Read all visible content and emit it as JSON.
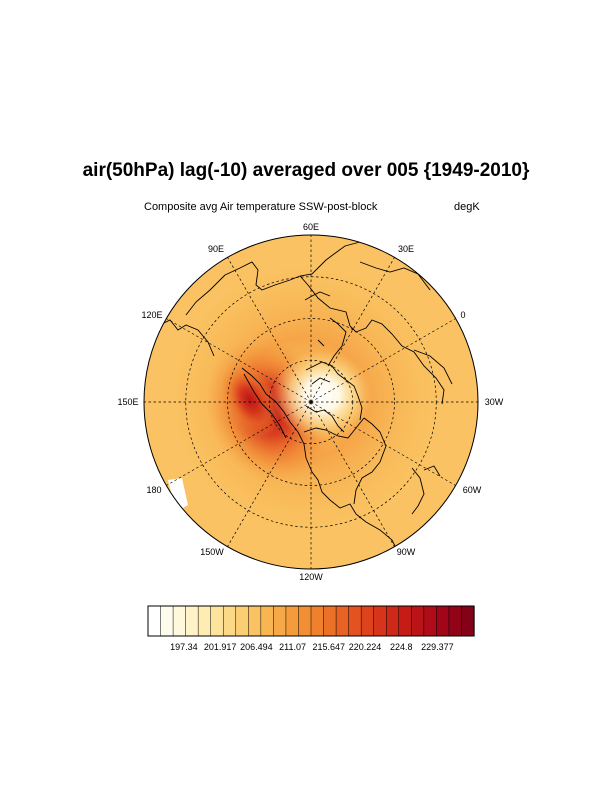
{
  "title": "air(50hPa) lag(-10) averaged over 005 {1949-2010}",
  "subtitle": "Composite avg Air temperature SSW-post-block",
  "units": "degK",
  "longitude_labels": [
    "60E",
    "30E",
    "0",
    "30W",
    "60W",
    "90W",
    "120W",
    "150W",
    "180",
    "150E",
    "120E",
    "90E"
  ],
  "colorbar": {
    "tick_labels": [
      "197.34",
      "201.917",
      "206.494",
      "211.07",
      "215.647",
      "220.224",
      "224.8",
      "229.377"
    ],
    "min": 192.8,
    "max": 234.0,
    "colors": [
      "#ffffff",
      "#fffcee",
      "#fff8dd",
      "#fff2c8",
      "#ffecb2",
      "#fde39c",
      "#fcd987",
      "#fbce73",
      "#fac262",
      "#f8b653",
      "#f6a946",
      "#f49c3b",
      "#f28e33",
      "#ef802d",
      "#ec7128",
      "#e86224",
      "#e35220",
      "#dd431d",
      "#d6351b",
      "#ce2819",
      "#c51c18",
      "#ba1318",
      "#ae0c18",
      "#a00618",
      "#920318",
      "#830218"
    ]
  },
  "map": {
    "projection": "north-polar-stereographic",
    "field_range": [
      197.34,
      229.377
    ]
  }
}
